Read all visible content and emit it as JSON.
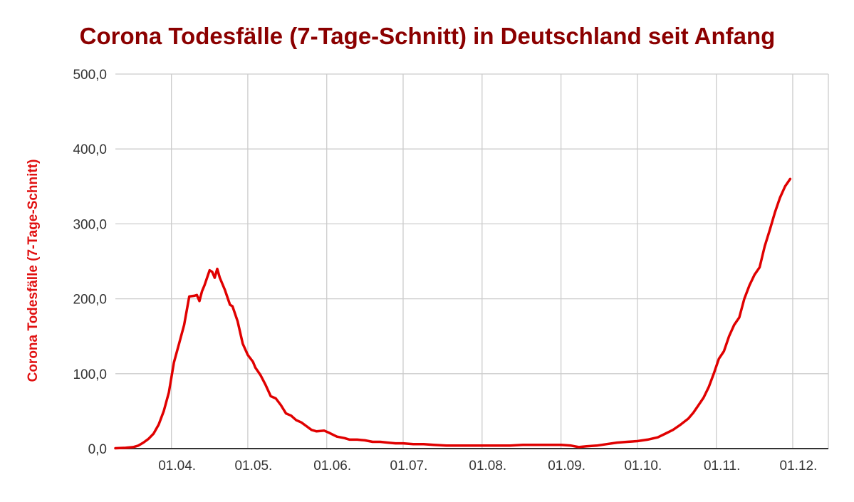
{
  "colors": {
    "title": "#8b0000",
    "ylabel": "#e01010",
    "line": "#e00000",
    "grid": "#cccccc",
    "axis": "#333333"
  },
  "chart_data": {
    "type": "line",
    "title": "Corona Todesfälle (7-Tage-Schnitt) in Deutschland seit Anfang",
    "ylabel": "Corona Todesfälle (7-Tage-Schnitt)",
    "xlabel": "",
    "ylim": [
      0,
      500
    ],
    "yticks": [
      "0,0",
      "100,0",
      "200,0",
      "300,0",
      "400,0",
      "500,0"
    ],
    "ytick_values": [
      0,
      100,
      200,
      300,
      400,
      500
    ],
    "xlim": [
      "2020-03-10",
      "2020-12-15"
    ],
    "xticks": [
      "01.04.",
      "01.05.",
      "01.06.",
      "01.07.",
      "01.08.",
      "01.09.",
      "01.10.",
      "01.11.",
      "01.12."
    ],
    "xtick_dates": [
      "2020-04-01",
      "2020-05-01",
      "2020-06-01",
      "2020-07-01",
      "2020-08-01",
      "2020-09-01",
      "2020-10-01",
      "2020-11-01",
      "2020-12-01"
    ],
    "grid": true,
    "series": [
      {
        "points": [
          [
            "2020-03-10",
            0.5
          ],
          [
            "2020-03-14",
            1
          ],
          [
            "2020-03-17",
            2
          ],
          [
            "2020-03-19",
            4
          ],
          [
            "2020-03-21",
            8
          ],
          [
            "2020-03-23",
            13
          ],
          [
            "2020-03-25",
            20
          ],
          [
            "2020-03-27",
            32
          ],
          [
            "2020-03-29",
            50
          ],
          [
            "2020-03-31",
            75
          ],
          [
            "2020-04-02",
            115
          ],
          [
            "2020-04-04",
            140
          ],
          [
            "2020-04-06",
            165
          ],
          [
            "2020-04-08",
            203
          ],
          [
            "2020-04-10",
            204
          ],
          [
            "2020-04-11",
            205
          ],
          [
            "2020-04-12",
            197
          ],
          [
            "2020-04-13",
            210
          ],
          [
            "2020-04-14",
            218
          ],
          [
            "2020-04-16",
            238
          ],
          [
            "2020-04-17",
            236
          ],
          [
            "2020-04-18",
            228
          ],
          [
            "2020-04-19",
            240
          ],
          [
            "2020-04-20",
            228
          ],
          [
            "2020-04-22",
            212
          ],
          [
            "2020-04-24",
            192
          ],
          [
            "2020-04-25",
            190
          ],
          [
            "2020-04-27",
            170
          ],
          [
            "2020-04-29",
            140
          ],
          [
            "2020-05-01",
            125
          ],
          [
            "2020-05-03",
            116
          ],
          [
            "2020-05-04",
            108
          ],
          [
            "2020-05-06",
            98
          ],
          [
            "2020-05-08",
            85
          ],
          [
            "2020-05-10",
            70
          ],
          [
            "2020-05-12",
            67
          ],
          [
            "2020-05-14",
            58
          ],
          [
            "2020-05-16",
            47
          ],
          [
            "2020-05-18",
            44
          ],
          [
            "2020-05-20",
            38
          ],
          [
            "2020-05-22",
            35
          ],
          [
            "2020-05-24",
            30
          ],
          [
            "2020-05-26",
            25
          ],
          [
            "2020-05-28",
            23
          ],
          [
            "2020-05-31",
            24
          ],
          [
            "2020-06-02",
            21
          ],
          [
            "2020-06-05",
            16
          ],
          [
            "2020-06-08",
            14
          ],
          [
            "2020-06-10",
            12
          ],
          [
            "2020-06-13",
            12
          ],
          [
            "2020-06-16",
            11
          ],
          [
            "2020-06-19",
            9
          ],
          [
            "2020-06-22",
            9
          ],
          [
            "2020-06-25",
            8
          ],
          [
            "2020-06-28",
            7
          ],
          [
            "2020-07-01",
            7
          ],
          [
            "2020-07-05",
            6
          ],
          [
            "2020-07-09",
            6
          ],
          [
            "2020-07-13",
            5
          ],
          [
            "2020-07-18",
            4
          ],
          [
            "2020-07-23",
            4
          ],
          [
            "2020-07-28",
            4
          ],
          [
            "2020-08-02",
            4
          ],
          [
            "2020-08-07",
            4
          ],
          [
            "2020-08-12",
            4
          ],
          [
            "2020-08-17",
            5
          ],
          [
            "2020-08-22",
            5
          ],
          [
            "2020-08-27",
            5
          ],
          [
            "2020-09-01",
            5
          ],
          [
            "2020-09-05",
            4
          ],
          [
            "2020-09-08",
            2
          ],
          [
            "2020-09-11",
            3
          ],
          [
            "2020-09-15",
            4
          ],
          [
            "2020-09-19",
            6
          ],
          [
            "2020-09-23",
            8
          ],
          [
            "2020-09-27",
            9
          ],
          [
            "2020-10-01",
            10
          ],
          [
            "2020-10-05",
            12
          ],
          [
            "2020-10-09",
            15
          ],
          [
            "2020-10-12",
            20
          ],
          [
            "2020-10-15",
            25
          ],
          [
            "2020-10-18",
            32
          ],
          [
            "2020-10-21",
            40
          ],
          [
            "2020-10-23",
            48
          ],
          [
            "2020-10-25",
            58
          ],
          [
            "2020-10-27",
            68
          ],
          [
            "2020-10-29",
            82
          ],
          [
            "2020-10-31",
            100
          ],
          [
            "2020-11-02",
            120
          ],
          [
            "2020-11-04",
            130
          ],
          [
            "2020-11-06",
            150
          ],
          [
            "2020-11-08",
            165
          ],
          [
            "2020-11-10",
            175
          ],
          [
            "2020-11-12",
            200
          ],
          [
            "2020-11-14",
            218
          ],
          [
            "2020-11-16",
            232
          ],
          [
            "2020-11-18",
            242
          ],
          [
            "2020-11-20",
            270
          ],
          [
            "2020-11-22",
            292
          ],
          [
            "2020-11-24",
            315
          ],
          [
            "2020-11-26",
            335
          ],
          [
            "2020-11-28",
            350
          ],
          [
            "2020-11-30",
            360
          ]
        ]
      }
    ]
  }
}
